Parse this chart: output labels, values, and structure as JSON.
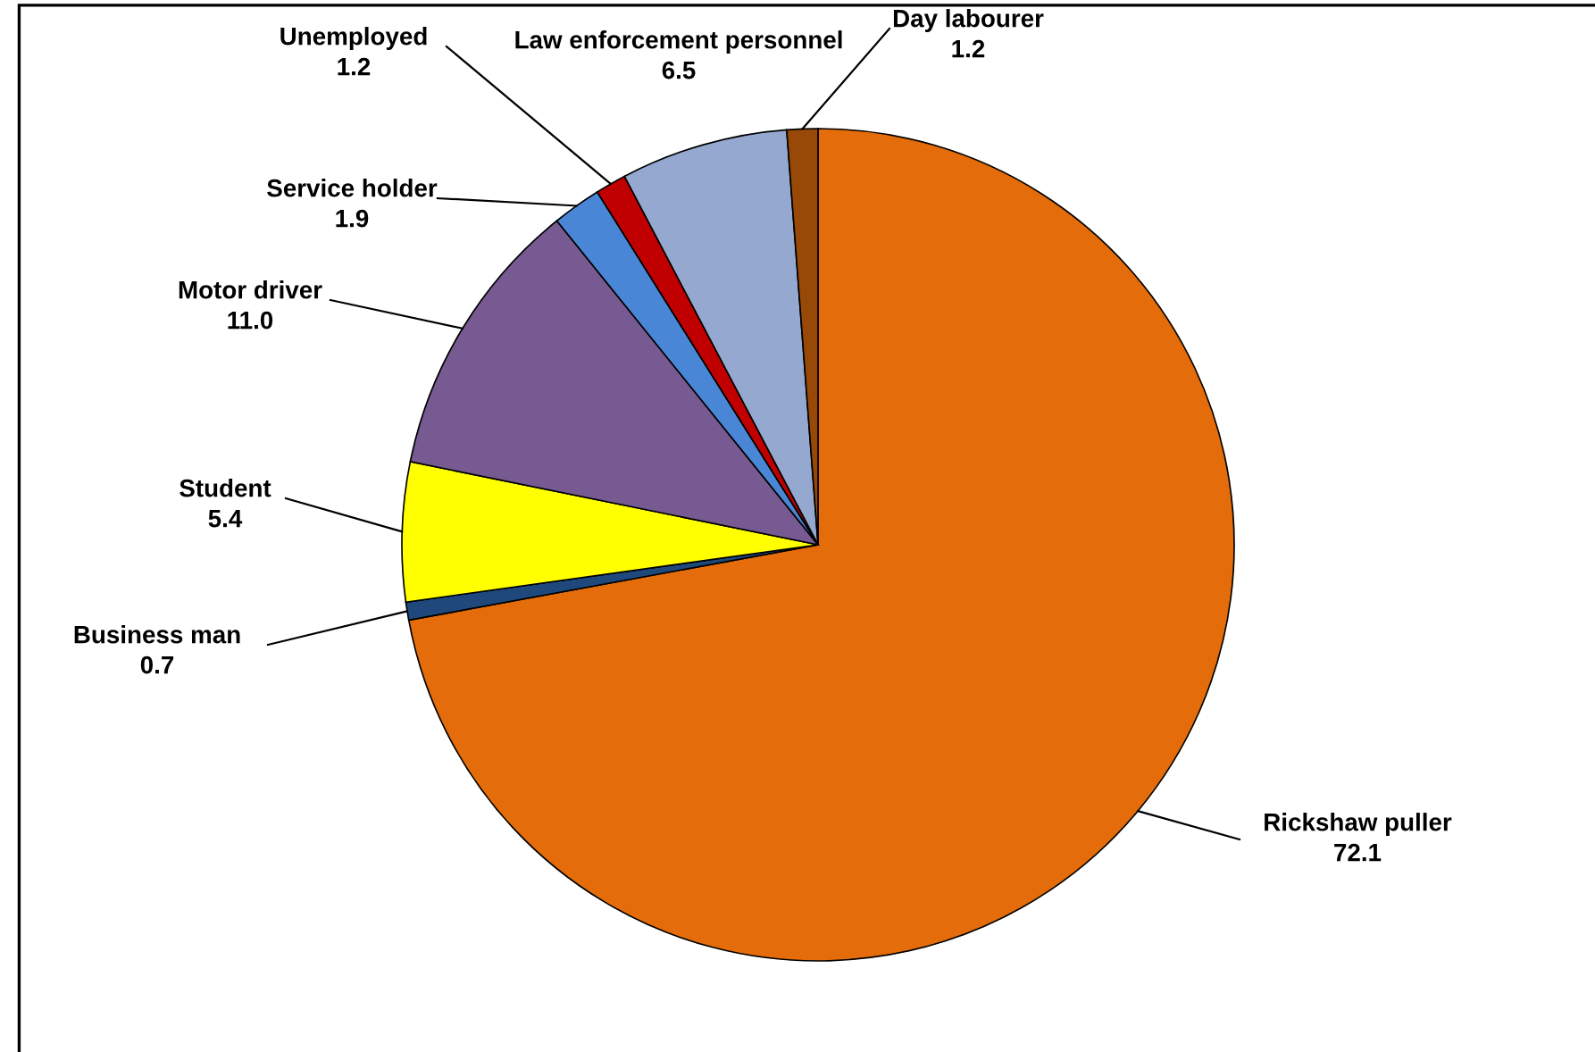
{
  "chart_data": {
    "type": "pie",
    "categories": [
      "Rickshaw puller",
      "Business man",
      "Student",
      "Motor driver",
      "Service holder",
      "Unemployed",
      "Law enforcement personnel",
      "Day labourer"
    ],
    "values": [
      72.1,
      0.7,
      5.4,
      11.0,
      1.9,
      1.2,
      6.5,
      1.2
    ],
    "value_labels": [
      "72.1",
      "0.7",
      "5.4",
      "11.0",
      "1.9",
      "1.2",
      "6.5",
      "1.2"
    ],
    "colors": [
      "#e46c0a",
      "#1f497d",
      "#ffff00",
      "#765a91",
      "#4a86d6",
      "#c00000",
      "#95a9d0",
      "#984807"
    ],
    "legend": false
  }
}
